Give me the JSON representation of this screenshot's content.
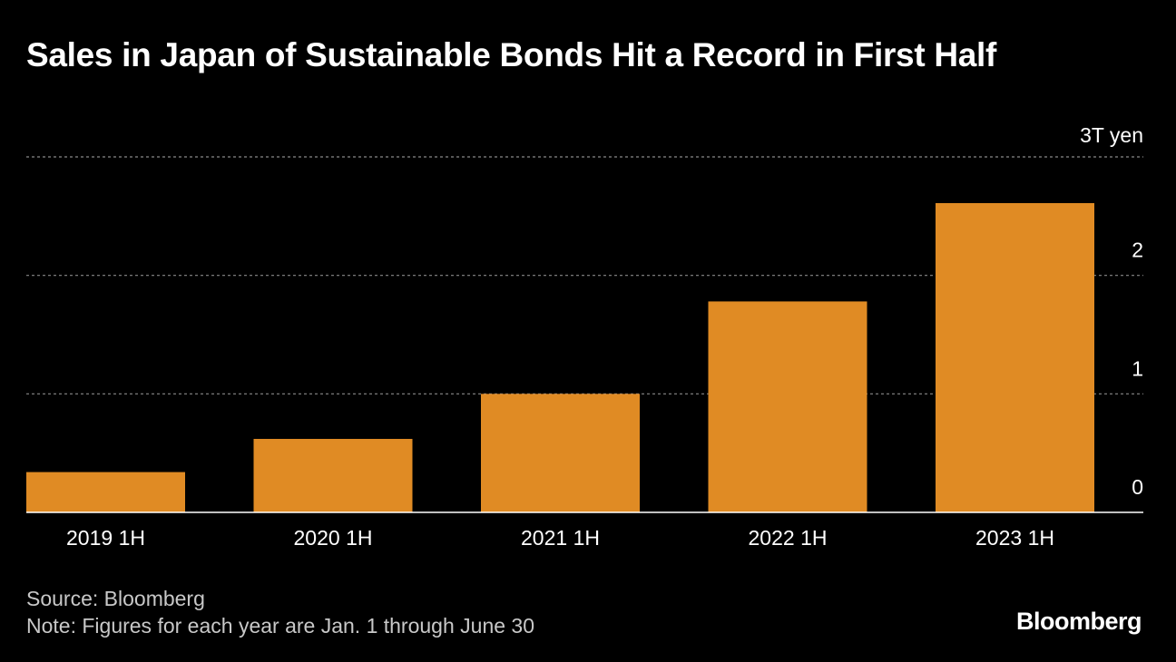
{
  "title": "Sales in Japan of Sustainable Bonds Hit a Record in First Half",
  "footer": {
    "source": "Source: Bloomberg",
    "note": "Note: Figures for each year are Jan. 1 through June 30",
    "brand": "Bloomberg"
  },
  "colors": {
    "bar": "#e08b24",
    "grid": "#8a8a8a",
    "baseline": "#ffffff",
    "text": "#ffffff",
    "muted": "#c8c8c8",
    "background": "#000000"
  },
  "chart_data": {
    "type": "bar",
    "title": "Sales in Japan of Sustainable Bonds Hit a Record in First Half",
    "categories": [
      "2019 1H",
      "2020 1H",
      "2021 1H",
      "2022 1H",
      "2023 1H"
    ],
    "values": [
      0.34,
      0.62,
      1.0,
      1.78,
      2.61
    ],
    "ylim": [
      0,
      3
    ],
    "yticks": [
      0,
      1,
      2,
      3
    ],
    "ytick_labels": [
      "0",
      "1",
      "2",
      "3T yen"
    ],
    "ylabel": "",
    "xlabel": "",
    "unit": "trillion yen",
    "grid": true
  }
}
